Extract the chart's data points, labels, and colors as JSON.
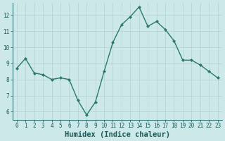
{
  "x": [
    0,
    1,
    2,
    3,
    4,
    5,
    6,
    7,
    8,
    9,
    10,
    11,
    12,
    13,
    14,
    15,
    16,
    17,
    18,
    19,
    20,
    21,
    22,
    23
  ],
  "y": [
    8.7,
    9.3,
    8.4,
    8.3,
    8.0,
    8.1,
    8.0,
    6.7,
    5.8,
    6.6,
    8.5,
    10.3,
    11.4,
    11.9,
    12.5,
    11.3,
    11.6,
    11.1,
    10.4,
    9.2,
    9.2,
    8.9,
    8.5,
    8.1
  ],
  "line_color": "#2a7a6a",
  "marker": "D",
  "marker_size": 2.0,
  "bg_color": "#cce8e8",
  "grid_color": "#b8d4d4",
  "xlabel": "Humidex (Indice chaleur)",
  "xlim": [
    -0.5,
    23.5
  ],
  "ylim": [
    5.5,
    12.75
  ],
  "yticks": [
    6,
    7,
    8,
    9,
    10,
    11,
    12
  ],
  "xticks": [
    0,
    1,
    2,
    3,
    4,
    5,
    6,
    7,
    8,
    9,
    10,
    11,
    12,
    13,
    14,
    15,
    16,
    17,
    18,
    19,
    20,
    21,
    22,
    23
  ],
  "tick_fontsize": 5.5,
  "label_fontsize": 7.5,
  "line_width": 1.0,
  "text_color": "#1a5a5a"
}
